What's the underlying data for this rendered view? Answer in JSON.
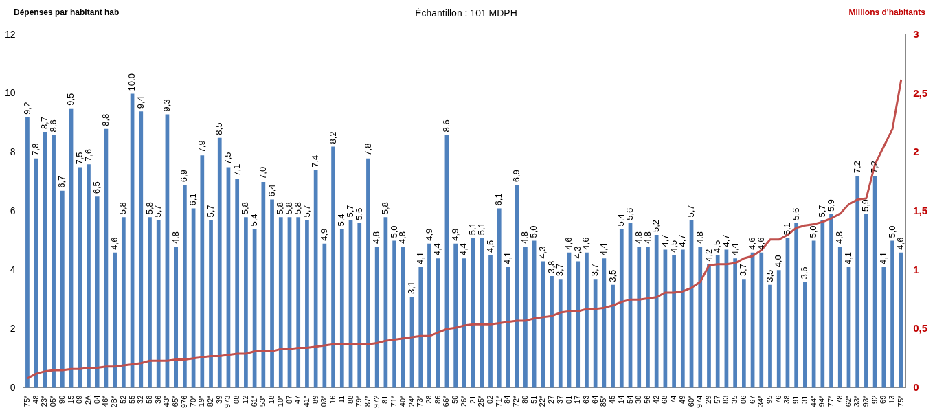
{
  "chart_data": {
    "type": "bar",
    "title": "Échantillon : 101 MDPH",
    "ylabel": "Dépenses par habitant hab",
    "y2label": "Millions d'habitants",
    "categories": [
      "75*",
      "48",
      "23*",
      "05*",
      "90",
      "15",
      "09",
      "2A",
      "04",
      "46*",
      "2B*",
      "52",
      "55",
      "32",
      "58",
      "36",
      "43*",
      "65*",
      "976",
      "70*",
      "19*",
      "82*",
      "39",
      "973",
      "08",
      "12",
      "61*",
      "53*",
      "18",
      "10*",
      "07",
      "47",
      "41*",
      "89",
      "03*",
      "16",
      "11",
      "88",
      "79*",
      "87*",
      "972",
      "81",
      "71*",
      "40*",
      "24*",
      "73*",
      "28",
      "86",
      "66*",
      "50",
      "26*",
      "21",
      "25*",
      "02",
      "71*",
      "84",
      "72*",
      "80",
      "51",
      "22*",
      "27",
      "37",
      "01",
      "17",
      "63",
      "64",
      "85*",
      "45",
      "14",
      "54",
      "30",
      "56",
      "42",
      "68",
      "74",
      "49",
      "60*",
      "974",
      "29",
      "57",
      "83",
      "35",
      "06",
      "67",
      "34*",
      "95",
      "76",
      "38",
      "91",
      "31",
      "44*",
      "94*",
      "77*",
      "78",
      "62*",
      "33*",
      "93*",
      "92",
      "69",
      "13",
      "75*"
    ],
    "series": [
      {
        "color": "#4f81bd",
        "values": [
          9.2,
          7.8,
          8.7,
          8.6,
          6.7,
          9.5,
          7.5,
          7.6,
          6.5,
          8.8,
          4.6,
          5.8,
          10.0,
          9.4,
          5.8,
          5.7,
          9.3,
          4.8,
          6.9,
          6.1,
          7.9,
          5.7,
          8.5,
          7.5,
          7.1,
          5.8,
          5.4,
          7.0,
          6.4,
          5.8,
          5.8,
          5.8,
          5.7,
          7.4,
          4.9,
          8.2,
          5.4,
          5.7,
          5.6,
          7.8,
          4.8,
          5.8,
          5.0,
          4.8,
          3.1,
          4.1,
          4.9,
          4.4,
          8.6,
          4.9,
          4.4,
          5.1,
          5.1,
          4.5,
          6.1,
          4.1,
          6.9,
          4.8,
          5.0,
          4.3,
          3.8,
          3.7,
          4.6,
          4.3,
          4.6,
          3.7,
          4.4,
          3.5,
          5.4,
          5.6,
          4.8,
          4.8,
          5.2,
          4.7,
          4.5,
          4.7,
          5.7,
          4.8,
          4.2,
          4.5,
          4.7,
          4.4,
          3.7,
          4.6,
          4.6,
          3.5,
          4.0,
          5.1,
          5.6,
          3.6,
          5.0,
          5.7,
          5.9,
          4.8,
          4.1,
          7.2,
          5.9,
          7.2,
          4.1,
          5.0,
          4.6
        ],
        "value_labels": [
          "9,2",
          "7,8",
          "8,7",
          "8,6",
          "6,7",
          "9,5",
          "7,5",
          "7,6",
          "6,5",
          "8,8",
          "4,6",
          "5,8",
          "10,0",
          "9,4",
          "5,8",
          "5,7",
          "9,3",
          "4,8",
          "6,9",
          "6,1",
          "7,9",
          "5,7",
          "8,5",
          "7,5",
          "7,1",
          "5,8",
          "5,4",
          "7,0",
          "6,4",
          "5,8",
          "5,8",
          "5,8",
          "5,7",
          "7,4",
          "4,9",
          "8,2",
          "5,4",
          "5,7",
          "5,6",
          "7,8",
          "4,8",
          "5,8",
          "5,0",
          "4,8",
          "3,1",
          "4,1",
          "4,9",
          "4,4",
          "8,6",
          "4,9",
          "4,4",
          "5,1",
          "5,1",
          "4,5",
          "6,1",
          "4,1",
          "6,9",
          "4,8",
          "5,0",
          "4,3",
          "3,8",
          "3,7",
          "4,6",
          "4,3",
          "4,6",
          "3,7",
          "4,4",
          "3,5",
          "5,4",
          "5,6",
          "4,8",
          "4,8",
          "5,2",
          "4,7",
          "4,5",
          "4,7",
          "5,7",
          "4,8",
          "4,2",
          "4,5",
          "4,7",
          "4,4",
          "3,7",
          "4,6",
          "4,6",
          "3,5",
          "4,0",
          "5,1",
          "5,6",
          "3,6",
          "5,0",
          "5,7",
          "5,9",
          "4,8",
          "4,1",
          "7,2",
          "5,9",
          "7,2",
          "4,1",
          "5,0",
          "4,6"
        ]
      },
      {
        "type": "line",
        "axis": "y2",
        "color": "#c0504d",
        "marker": "none",
        "values": [
          0.08,
          0.12,
          0.14,
          0.15,
          0.15,
          0.16,
          0.16,
          0.17,
          0.17,
          0.18,
          0.18,
          0.19,
          0.2,
          0.21,
          0.23,
          0.23,
          0.23,
          0.24,
          0.24,
          0.25,
          0.26,
          0.27,
          0.27,
          0.28,
          0.29,
          0.29,
          0.31,
          0.31,
          0.31,
          0.33,
          0.33,
          0.34,
          0.34,
          0.35,
          0.36,
          0.37,
          0.37,
          0.37,
          0.37,
          0.37,
          0.38,
          0.4,
          0.41,
          0.42,
          0.43,
          0.44,
          0.44,
          0.47,
          0.5,
          0.51,
          0.53,
          0.54,
          0.54,
          0.54,
          0.55,
          0.56,
          0.57,
          0.57,
          0.59,
          0.6,
          0.61,
          0.64,
          0.65,
          0.65,
          0.67,
          0.67,
          0.68,
          0.7,
          0.73,
          0.75,
          0.75,
          0.76,
          0.77,
          0.81,
          0.81,
          0.82,
          0.85,
          0.9,
          1.04,
          1.05,
          1.05,
          1.06,
          1.1,
          1.12,
          1.17,
          1.26,
          1.26,
          1.3,
          1.36,
          1.38,
          1.39,
          1.41,
          1.44,
          1.48,
          1.56,
          1.6,
          1.61,
          1.9,
          2.05,
          2.2,
          2.62
        ]
      }
    ],
    "ylim": [
      0,
      12
    ],
    "yticks": [
      0,
      2,
      4,
      6,
      8,
      10,
      12
    ],
    "y2lim": [
      0,
      3
    ],
    "y2ticks": [
      0,
      {
        "value": 0.5,
        "label": "0,5"
      },
      1,
      {
        "value": 1.5,
        "label": "1,5"
      },
      2,
      {
        "value": 2.5,
        "label": "2,5"
      },
      3
    ],
    "grid": false,
    "legend": false
  }
}
